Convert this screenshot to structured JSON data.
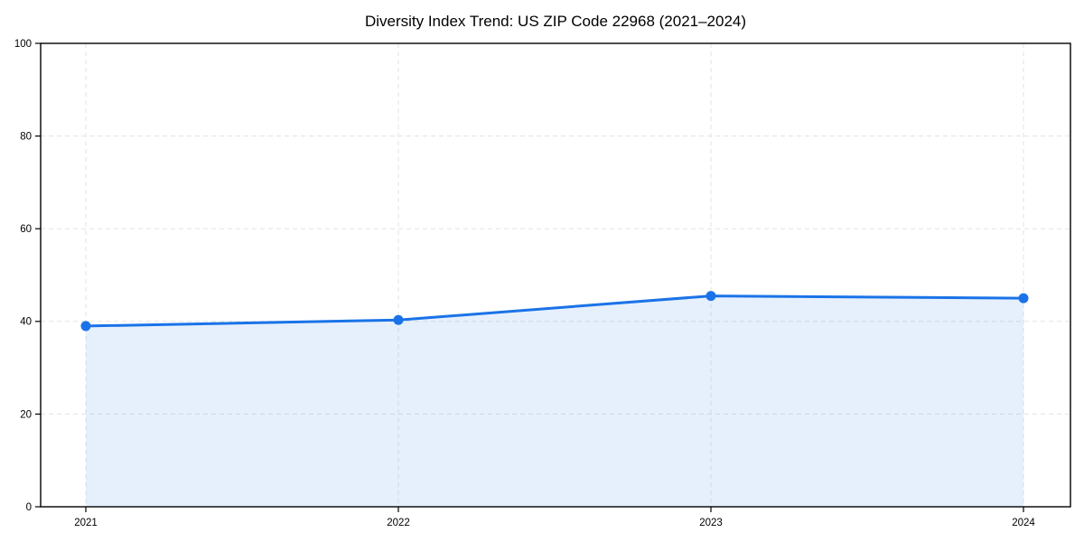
{
  "chart_data": {
    "type": "area",
    "title": "Diversity Index Trend: US ZIP Code 22968 (2021–2024)",
    "x_tick_labels": [
      "2021",
      "2022",
      "2023",
      "2024"
    ],
    "x": [
      2021,
      2022,
      2023,
      2024
    ],
    "values": [
      39.0,
      40.3,
      45.5,
      45.0
    ],
    "xlabel": "",
    "ylabel": "",
    "ylim": [
      0,
      100
    ],
    "yticks": [
      0,
      20,
      40,
      60,
      80,
      100
    ],
    "grid": "dashed",
    "legend": "none",
    "colors": {
      "line": "#1a73e8",
      "marker": "#1a73e8",
      "area_fill": "rgba(26,115,232,0.11)",
      "grid": "#e3e3e3",
      "axis": "#000000",
      "background": "#ffffff"
    }
  }
}
